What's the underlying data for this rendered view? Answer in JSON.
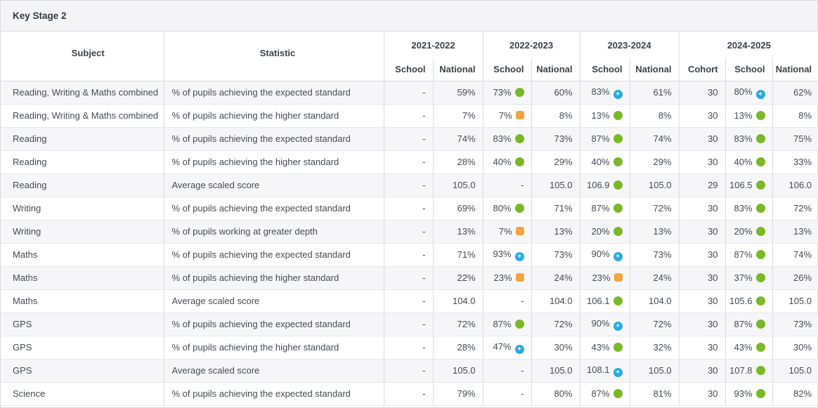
{
  "panel": {
    "title": "Key Stage 2"
  },
  "table": {
    "subject_header": "Subject",
    "statistic_header": "Statistic",
    "year_groups": [
      {
        "label": "2021-2022",
        "columns": [
          "School",
          "National"
        ]
      },
      {
        "label": "2022-2023",
        "columns": [
          "School",
          "National"
        ]
      },
      {
        "label": "2023-2024",
        "columns": [
          "School",
          "National"
        ]
      },
      {
        "label": "2024-2025",
        "columns": [
          "Cohort",
          "School",
          "National"
        ]
      }
    ],
    "rows": [
      {
        "subject": "Reading, Writing & Maths combined",
        "statistic": "% of pupils achieving the expected standard",
        "cells": [
          {
            "value": "-"
          },
          {
            "value": "59%"
          },
          {
            "value": "73%",
            "flag": "green"
          },
          {
            "value": "60%"
          },
          {
            "value": "83%",
            "flag": "blue"
          },
          {
            "value": "61%"
          },
          {
            "value": "30"
          },
          {
            "value": "80%",
            "flag": "blue"
          },
          {
            "value": "62%"
          }
        ]
      },
      {
        "subject": "Reading, Writing & Maths combined",
        "statistic": "% of pupils achieving the higher standard",
        "cells": [
          {
            "value": "-"
          },
          {
            "value": "7%"
          },
          {
            "value": "7%",
            "flag": "orange"
          },
          {
            "value": "8%"
          },
          {
            "value": "13%",
            "flag": "green"
          },
          {
            "value": "8%"
          },
          {
            "value": "30"
          },
          {
            "value": "13%",
            "flag": "green"
          },
          {
            "value": "8%"
          }
        ]
      },
      {
        "subject": "Reading",
        "statistic": "% of pupils achieving the expected standard",
        "cells": [
          {
            "value": "-"
          },
          {
            "value": "74%"
          },
          {
            "value": "83%",
            "flag": "green"
          },
          {
            "value": "73%"
          },
          {
            "value": "87%",
            "flag": "green"
          },
          {
            "value": "74%"
          },
          {
            "value": "30"
          },
          {
            "value": "83%",
            "flag": "green"
          },
          {
            "value": "75%"
          }
        ]
      },
      {
        "subject": "Reading",
        "statistic": "% of pupils achieving the higher standard",
        "cells": [
          {
            "value": "-"
          },
          {
            "value": "28%"
          },
          {
            "value": "40%",
            "flag": "green"
          },
          {
            "value": "29%"
          },
          {
            "value": "40%",
            "flag": "green"
          },
          {
            "value": "29%"
          },
          {
            "value": "30"
          },
          {
            "value": "40%",
            "flag": "green"
          },
          {
            "value": "33%"
          }
        ]
      },
      {
        "subject": "Reading",
        "statistic": "Average scaled score",
        "cells": [
          {
            "value": "-"
          },
          {
            "value": "105.0"
          },
          {
            "value": "-"
          },
          {
            "value": "105.0"
          },
          {
            "value": "106.9",
            "flag": "green"
          },
          {
            "value": "105.0"
          },
          {
            "value": "29"
          },
          {
            "value": "106.5",
            "flag": "green"
          },
          {
            "value": "106.0"
          }
        ]
      },
      {
        "subject": "Writing",
        "statistic": "% of pupils achieving the expected standard",
        "cells": [
          {
            "value": "-"
          },
          {
            "value": "69%"
          },
          {
            "value": "80%",
            "flag": "green"
          },
          {
            "value": "71%"
          },
          {
            "value": "87%",
            "flag": "green"
          },
          {
            "value": "72%"
          },
          {
            "value": "30"
          },
          {
            "value": "83%",
            "flag": "green"
          },
          {
            "value": "72%"
          }
        ]
      },
      {
        "subject": "Writing",
        "statistic": "% of pupils working at greater depth",
        "cells": [
          {
            "value": "-"
          },
          {
            "value": "13%"
          },
          {
            "value": "7%",
            "flag": "orange"
          },
          {
            "value": "13%"
          },
          {
            "value": "20%",
            "flag": "green"
          },
          {
            "value": "13%"
          },
          {
            "value": "30"
          },
          {
            "value": "20%",
            "flag": "green"
          },
          {
            "value": "13%"
          }
        ]
      },
      {
        "subject": "Maths",
        "statistic": "% of pupils achieving the expected standard",
        "cells": [
          {
            "value": "-"
          },
          {
            "value": "71%"
          },
          {
            "value": "93%",
            "flag": "blue"
          },
          {
            "value": "73%"
          },
          {
            "value": "90%",
            "flag": "blue"
          },
          {
            "value": "73%"
          },
          {
            "value": "30"
          },
          {
            "value": "87%",
            "flag": "green"
          },
          {
            "value": "74%"
          }
        ]
      },
      {
        "subject": "Maths",
        "statistic": "% of pupils achieving the higher standard",
        "cells": [
          {
            "value": "-"
          },
          {
            "value": "22%"
          },
          {
            "value": "23%",
            "flag": "orange"
          },
          {
            "value": "24%"
          },
          {
            "value": "23%",
            "flag": "orange"
          },
          {
            "value": "24%"
          },
          {
            "value": "30"
          },
          {
            "value": "37%",
            "flag": "green"
          },
          {
            "value": "26%"
          }
        ]
      },
      {
        "subject": "Maths",
        "statistic": "Average scaled score",
        "cells": [
          {
            "value": "-"
          },
          {
            "value": "104.0"
          },
          {
            "value": "-"
          },
          {
            "value": "104.0"
          },
          {
            "value": "106.1",
            "flag": "green"
          },
          {
            "value": "104.0"
          },
          {
            "value": "30"
          },
          {
            "value": "105.6",
            "flag": "green"
          },
          {
            "value": "105.0"
          }
        ]
      },
      {
        "subject": "GPS",
        "statistic": "% of pupils achieving the expected standard",
        "cells": [
          {
            "value": "-"
          },
          {
            "value": "72%"
          },
          {
            "value": "87%",
            "flag": "green"
          },
          {
            "value": "72%"
          },
          {
            "value": "90%",
            "flag": "blue"
          },
          {
            "value": "72%"
          },
          {
            "value": "30"
          },
          {
            "value": "87%",
            "flag": "green"
          },
          {
            "value": "73%"
          }
        ]
      },
      {
        "subject": "GPS",
        "statistic": "% of pupils achieving the higher standard",
        "cells": [
          {
            "value": "-"
          },
          {
            "value": "28%"
          },
          {
            "value": "47%",
            "flag": "blue"
          },
          {
            "value": "30%"
          },
          {
            "value": "43%",
            "flag": "green"
          },
          {
            "value": "32%"
          },
          {
            "value": "30"
          },
          {
            "value": "43%",
            "flag": "green"
          },
          {
            "value": "30%"
          }
        ]
      },
      {
        "subject": "GPS",
        "statistic": "Average scaled score",
        "cells": [
          {
            "value": "-"
          },
          {
            "value": "105.0"
          },
          {
            "value": "-"
          },
          {
            "value": "105.0"
          },
          {
            "value": "108.1",
            "flag": "blue"
          },
          {
            "value": "105.0"
          },
          {
            "value": "30"
          },
          {
            "value": "107.8",
            "flag": "green"
          },
          {
            "value": "105.0"
          }
        ]
      },
      {
        "subject": "Science",
        "statistic": "% of pupils achieving the expected standard",
        "cells": [
          {
            "value": "-"
          },
          {
            "value": "79%"
          },
          {
            "value": "-"
          },
          {
            "value": "80%"
          },
          {
            "value": "87%",
            "flag": "green"
          },
          {
            "value": "81%"
          },
          {
            "value": "30"
          },
          {
            "value": "93%",
            "flag": "green"
          },
          {
            "value": "82%"
          }
        ]
      }
    ]
  },
  "icons": {
    "green": {
      "name": "green-circle-icon",
      "color": "#7ab828",
      "glyph": ""
    },
    "orange": {
      "name": "orange-square-icon",
      "color": "#f2a43e",
      "glyph": ""
    },
    "blue": {
      "name": "blue-plus-icon",
      "color": "#29aae1",
      "glyph": "+"
    }
  },
  "colors": {
    "panel_header_bg": "#f4f4f7",
    "stripe_row_bg": "#f6f6f8",
    "border": "#dcdcdf",
    "text": "#454a53"
  }
}
